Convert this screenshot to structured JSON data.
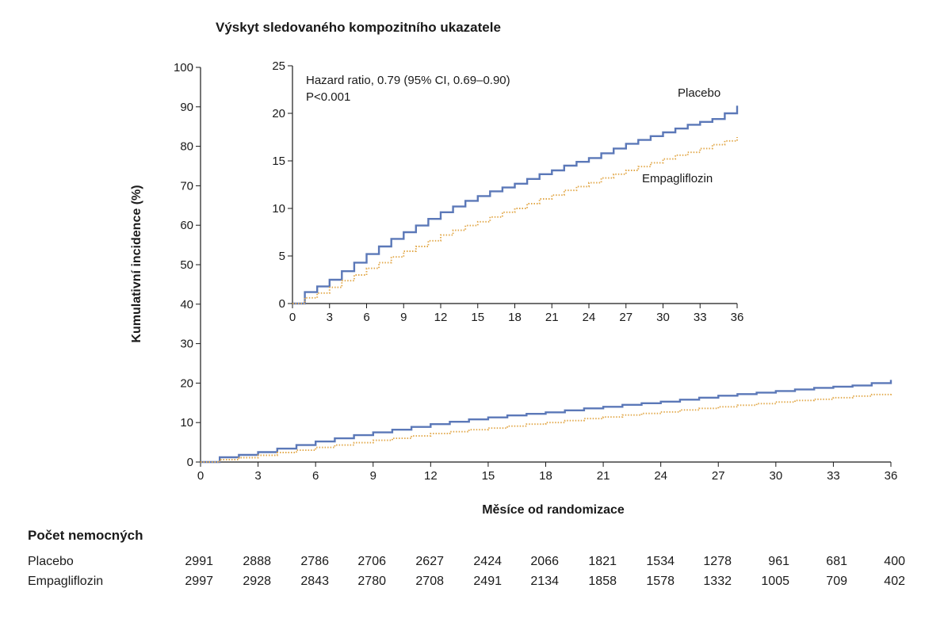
{
  "chart_data": {
    "type": "line",
    "title": "Výskyt sledovaného kompozitního ukazatele",
    "xlabel": "Měsíce od randomizace",
    "ylabel": "Kumulativní incidence (%)",
    "xlim": [
      0,
      36
    ],
    "ylim": [
      0,
      100
    ],
    "x_ticks": [
      "0",
      "3",
      "6",
      "9",
      "12",
      "15",
      "18",
      "21",
      "24",
      "27",
      "30",
      "33",
      "36"
    ],
    "y_ticks": [
      "0",
      "10",
      "20",
      "30",
      "40",
      "50",
      "60",
      "70",
      "80",
      "90",
      "100"
    ],
    "grid": false,
    "series": [
      {
        "name": "Placebo",
        "color": "#5b78b8",
        "style": "solid",
        "x": [
          0,
          1,
          2,
          3,
          4,
          5,
          6,
          7,
          8,
          9,
          10,
          11,
          12,
          13,
          14,
          15,
          16,
          17,
          18,
          19,
          20,
          21,
          22,
          23,
          24,
          25,
          26,
          27,
          28,
          29,
          30,
          31,
          32,
          33,
          34,
          35,
          36
        ],
        "y": [
          0,
          1.2,
          1.8,
          2.5,
          3.4,
          4.3,
          5.2,
          6.0,
          6.8,
          7.5,
          8.2,
          8.9,
          9.6,
          10.2,
          10.8,
          11.3,
          11.8,
          12.2,
          12.6,
          13.1,
          13.6,
          14.0,
          14.5,
          14.9,
          15.3,
          15.8,
          16.3,
          16.8,
          17.2,
          17.6,
          18.0,
          18.4,
          18.8,
          19.1,
          19.4,
          20.0,
          20.8
        ]
      },
      {
        "name": "Empagliflozin",
        "color": "#e2a84a",
        "style": "dotted",
        "x": [
          0,
          1,
          2,
          3,
          4,
          5,
          6,
          7,
          8,
          9,
          10,
          11,
          12,
          13,
          14,
          15,
          16,
          17,
          18,
          19,
          20,
          21,
          22,
          23,
          24,
          25,
          26,
          27,
          28,
          29,
          30,
          31,
          32,
          33,
          34,
          35,
          36
        ],
        "y": [
          0,
          0.6,
          1.1,
          1.7,
          2.4,
          3.0,
          3.7,
          4.3,
          4.9,
          5.5,
          6.0,
          6.6,
          7.2,
          7.7,
          8.2,
          8.6,
          9.1,
          9.6,
          10.0,
          10.5,
          11.0,
          11.4,
          11.9,
          12.3,
          12.7,
          13.2,
          13.6,
          14.0,
          14.4,
          14.8,
          15.2,
          15.6,
          15.9,
          16.3,
          16.7,
          17.1,
          17.5
        ]
      }
    ],
    "inset": {
      "xlim": [
        0,
        36
      ],
      "ylim": [
        0,
        25
      ],
      "x_ticks": [
        "0",
        "3",
        "6",
        "9",
        "12",
        "15",
        "18",
        "21",
        "24",
        "27",
        "30",
        "33",
        "36"
      ],
      "y_ticks": [
        "0",
        "5",
        "10",
        "15",
        "20",
        "25"
      ],
      "annotation_line1": "Hazard ratio, 0.79 (95% CI, 0.69–0.90)",
      "annotation_line2": "P<0.001",
      "label_placebo": "Placebo",
      "label_empagliflozin": "Empagliflozin"
    }
  },
  "risk_table": {
    "heading": "Počet nemocných",
    "rows": [
      {
        "label": "Placebo",
        "values": [
          "2991",
          "2888",
          "2786",
          "2706",
          "2627",
          "2424",
          "2066",
          "1821",
          "1534",
          "1278",
          "961",
          "681",
          "400"
        ]
      },
      {
        "label": "Empagliflozin",
        "values": [
          "2997",
          "2928",
          "2843",
          "2780",
          "2708",
          "2491",
          "2134",
          "1858",
          "1578",
          "1332",
          "1005",
          "709",
          "402"
        ]
      }
    ]
  }
}
